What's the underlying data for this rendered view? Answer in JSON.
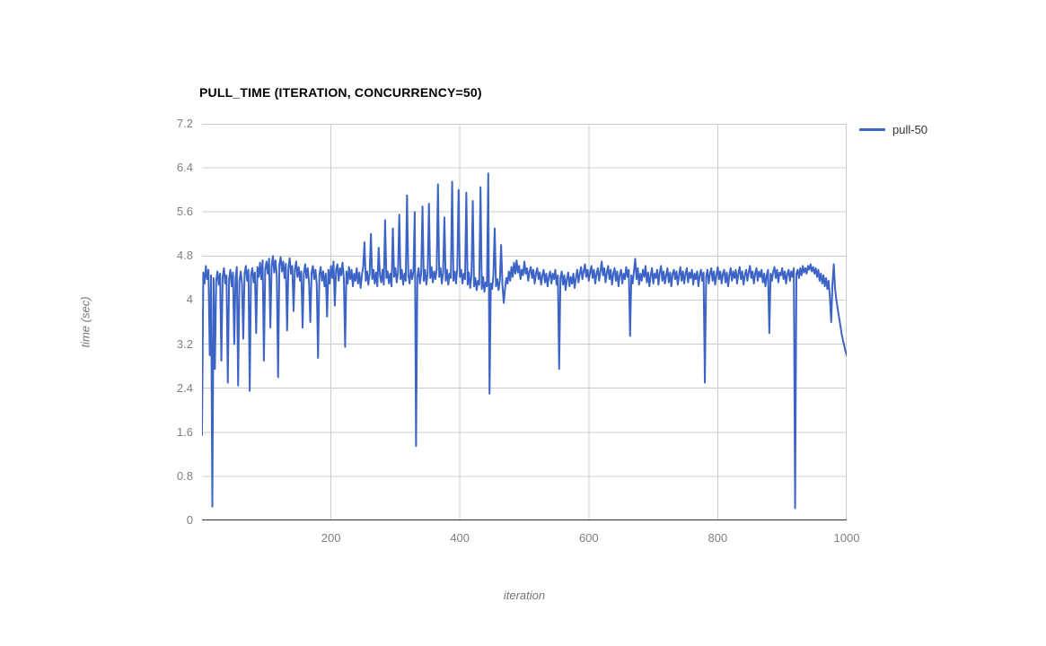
{
  "title": "PULL_TIME (ITERATION, CONCURRENCY=50)",
  "colors": {
    "series": "#3C63C6",
    "gridline": "#cccccc",
    "axis_line": "#333333",
    "tick_label": "#808080",
    "axis_title": "#757575",
    "title": "#000000",
    "background": "#ffffff"
  },
  "legend": {
    "position": "right",
    "items": [
      {
        "label": "pull-50",
        "color": "#3C63C6"
      }
    ]
  },
  "chart_data": {
    "type": "line",
    "title": "PULL_TIME (ITERATION, CONCURRENCY=50)",
    "xlabel": "iteration",
    "ylabel": "time (sec)",
    "xlim": [
      0,
      1000
    ],
    "ylim": [
      0,
      7.2
    ],
    "xticks": [
      200,
      400,
      600,
      800,
      1000
    ],
    "yticks": [
      7.2,
      6.4,
      5.6,
      4.8,
      4,
      3.2,
      2.4,
      1.6,
      0.8,
      0
    ],
    "grid": true,
    "legend_position": "right",
    "series": [
      {
        "name": "pull-50",
        "color": "#3C63C6",
        "x_start": 0,
        "x_step": 2,
        "values": [
          1.55,
          4.5,
          4.3,
          4.62,
          4.38,
          4.55,
          3.0,
          4.45,
          0.25,
          4.4,
          2.75,
          4.35,
          4.52,
          4.28,
          4.48,
          2.9,
          4.42,
          4.58,
          4.3,
          4.45,
          2.5,
          4.38,
          4.55,
          4.25,
          4.5,
          3.2,
          4.4,
          4.6,
          2.45,
          4.35,
          4.52,
          4.3,
          3.3,
          4.48,
          4.62,
          4.35,
          4.55,
          2.35,
          4.45,
          4.58,
          4.32,
          4.5,
          3.4,
          4.6,
          4.42,
          4.68,
          4.38,
          4.72,
          2.9,
          4.55,
          4.7,
          4.48,
          4.75,
          3.5,
          4.62,
          4.8,
          4.5,
          4.72,
          4.44,
          2.6,
          4.65,
          4.78,
          4.52,
          4.7,
          4.4,
          4.66,
          3.45,
          4.58,
          4.76,
          4.48,
          4.62,
          3.8,
          4.55,
          4.7,
          4.42,
          4.6,
          4.35,
          4.52,
          3.5,
          4.48,
          4.65,
          4.4,
          4.58,
          4.32,
          3.6,
          4.5,
          4.62,
          4.38,
          4.55,
          4.28,
          2.95,
          4.45,
          4.6,
          4.35,
          4.52,
          4.25,
          4.48,
          3.7,
          4.55,
          4.3,
          4.62,
          4.4,
          4.7,
          3.9,
          4.55,
          4.65,
          4.35,
          4.58,
          4.45,
          4.68,
          4.4,
          3.15,
          4.52,
          4.3,
          4.6,
          4.38,
          4.55,
          4.25,
          4.48,
          4.35,
          4.58,
          4.3,
          4.5,
          4.22,
          4.45,
          4.6,
          5.05,
          4.35,
          4.52,
          4.28,
          4.48,
          5.2,
          4.38,
          4.55,
          4.3,
          4.5,
          4.25,
          4.95,
          4.45,
          4.32,
          4.55,
          4.28,
          5.45,
          4.4,
          4.52,
          4.3,
          4.48,
          4.25,
          5.3,
          4.42,
          4.58,
          4.32,
          4.5,
          5.55,
          4.38,
          4.55,
          4.28,
          4.48,
          4.35,
          5.9,
          4.45,
          4.3,
          4.55,
          4.38,
          4.52,
          5.6,
          1.35,
          4.42,
          4.58,
          4.3,
          4.5,
          5.7,
          4.35,
          4.55,
          4.28,
          4.48,
          5.75,
          4.4,
          4.6,
          4.32,
          4.52,
          4.38,
          4.55,
          6.1,
          4.42,
          4.58,
          4.3,
          4.5,
          5.5,
          4.35,
          4.55,
          4.28,
          4.48,
          4.4,
          6.15,
          4.35,
          4.52,
          4.3,
          4.58,
          6.0,
          4.42,
          4.55,
          4.3,
          4.48,
          4.38,
          5.95,
          4.28,
          4.5,
          4.22,
          4.45,
          5.8,
          4.25,
          4.4,
          4.18,
          4.35,
          4.28,
          6.05,
          4.2,
          4.42,
          4.15,
          4.32,
          4.25,
          6.3,
          2.3,
          4.3,
          4.2,
          4.45,
          5.3,
          4.25,
          4.38,
          4.18,
          4.35,
          5.0,
          4.28,
          3.95,
          4.2,
          4.4,
          4.3,
          4.52,
          4.35,
          4.6,
          4.42,
          4.68,
          4.48,
          4.72,
          4.5,
          4.62,
          4.38,
          4.55,
          4.45,
          4.7,
          4.48,
          4.58,
          4.35,
          4.52,
          4.6,
          4.4,
          4.55,
          4.3,
          4.48,
          4.58,
          4.38,
          4.5,
          4.28,
          4.45,
          4.55,
          4.32,
          4.48,
          4.25,
          4.42,
          4.52,
          4.3,
          4.48,
          4.38,
          4.55,
          4.28,
          4.45,
          2.75,
          4.4,
          4.52,
          4.28,
          4.45,
          4.18,
          4.38,
          4.5,
          4.25,
          4.42,
          4.3,
          4.48,
          4.22,
          4.4,
          4.55,
          4.32,
          4.48,
          4.6,
          4.38,
          4.52,
          4.65,
          4.42,
          4.55,
          4.35,
          4.5,
          4.62,
          4.4,
          4.55,
          4.3,
          4.48,
          4.58,
          4.35,
          4.52,
          4.7,
          4.45,
          4.58,
          4.32,
          4.5,
          4.62,
          4.38,
          4.55,
          4.28,
          4.48,
          4.58,
          4.35,
          4.52,
          4.25,
          4.45,
          4.55,
          4.3,
          4.48,
          4.38,
          4.6,
          4.42,
          4.55,
          3.35,
          4.45,
          4.3,
          4.52,
          4.75,
          4.38,
          4.58,
          4.28,
          4.48,
          4.35,
          4.55,
          4.42,
          4.62,
          4.32,
          4.5,
          4.25,
          4.45,
          4.58,
          4.3,
          4.48,
          4.4,
          4.55,
          4.28,
          4.5,
          4.62,
          4.35,
          4.52,
          4.3,
          4.45,
          4.58,
          4.32,
          4.5,
          4.25,
          4.48,
          4.55,
          4.38,
          4.52,
          4.28,
          4.45,
          4.6,
          4.35,
          4.52,
          4.3,
          4.48,
          4.58,
          4.32,
          4.5,
          4.4,
          4.55,
          4.28,
          4.48,
          4.38,
          4.52,
          4.25,
          4.45,
          4.55,
          4.35,
          4.5,
          2.5,
          4.42,
          4.55,
          4.3,
          4.48,
          4.58,
          4.35,
          4.52,
          4.28,
          4.45,
          4.6,
          4.38,
          4.52,
          4.3,
          4.48,
          4.55,
          4.32,
          4.5,
          4.25,
          4.45,
          4.58,
          4.35,
          4.52,
          4.4,
          4.55,
          4.3,
          4.48,
          4.6,
          4.38,
          4.52,
          4.28,
          4.45,
          4.55,
          4.35,
          4.5,
          4.62,
          4.4,
          4.52,
          4.3,
          4.48,
          4.58,
          4.35,
          4.52,
          4.42,
          4.55,
          4.32,
          4.48,
          4.25,
          4.45,
          4.55,
          3.4,
          4.48,
          4.35,
          4.52,
          4.6,
          4.4,
          4.55,
          4.32,
          4.5,
          4.45,
          4.58,
          4.38,
          4.52,
          4.3,
          4.48,
          4.55,
          4.35,
          4.52,
          4.42,
          4.58,
          0.22,
          4.48,
          4.55,
          4.4,
          4.58,
          4.45,
          4.62,
          4.5,
          4.58,
          4.48,
          4.62,
          4.55,
          4.65,
          4.52,
          4.6,
          4.48,
          4.58,
          4.42,
          4.55,
          4.35,
          4.48,
          4.3,
          4.45,
          4.25,
          4.4,
          4.2,
          4.35,
          4.05,
          3.6,
          4.3,
          4.65,
          4.2,
          4.0,
          3.85,
          3.7,
          3.55,
          3.4,
          3.28,
          3.18,
          3.08,
          3.0
        ]
      }
    ]
  }
}
